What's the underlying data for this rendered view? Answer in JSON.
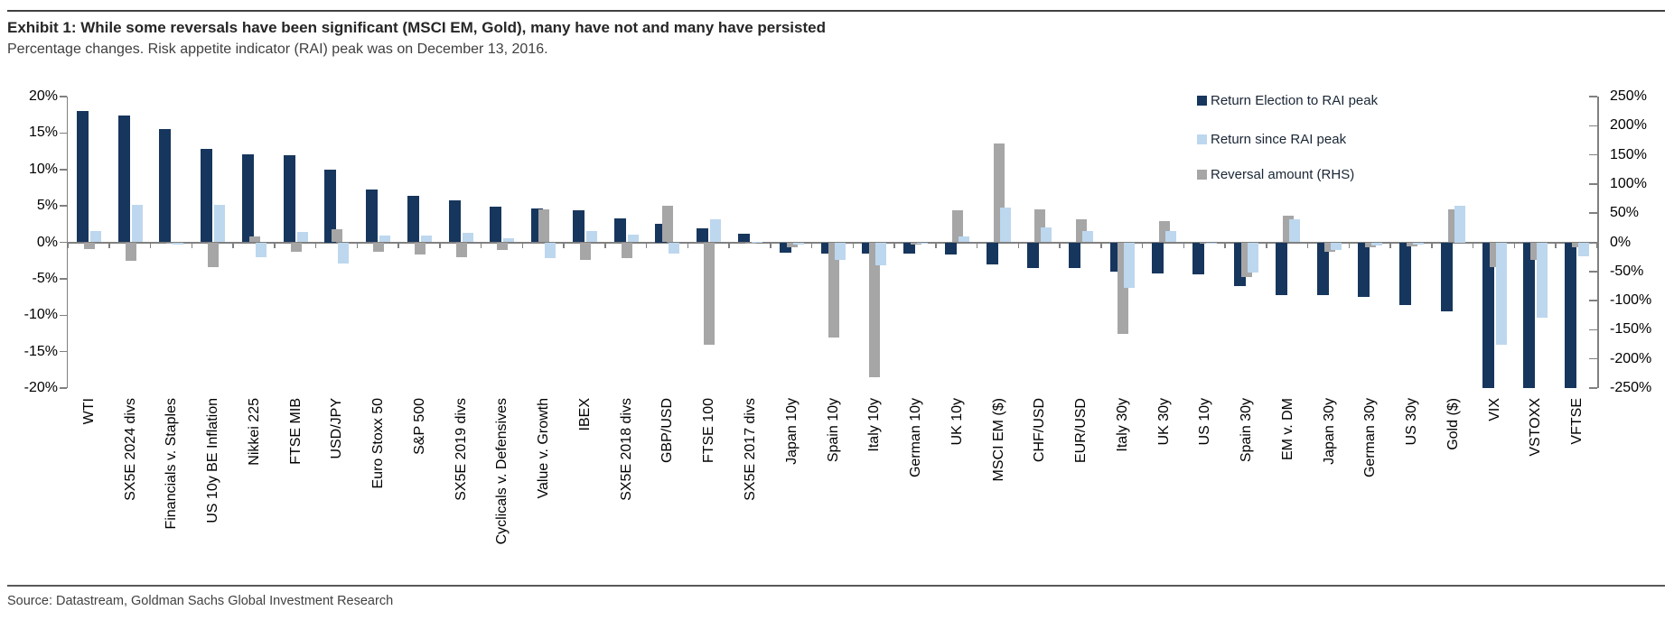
{
  "header": {
    "title": "Exhibit 1: While some reversals have been significant (MSCI EM, Gold), many have not and many have persisted",
    "subtitle": "Percentage changes. Risk appetite indicator (RAI) peak was on December 13, 2016."
  },
  "footer": {
    "source": "Source: Datastream, Goldman Sachs Global Investment Research"
  },
  "legend": [
    {
      "label": "Return Election to RAI peak",
      "color": "#17365d"
    },
    {
      "label": "Return since RAI peak",
      "color": "#bdd7ee"
    },
    {
      "label": "Reversal amount (RHS)",
      "color": "#a6a6a6"
    }
  ],
  "colors": {
    "navy": "#17365d",
    "light_blue": "#bdd7ee",
    "gray": "#a6a6a6",
    "axis": "#808080",
    "text": "#000000"
  },
  "chart_data": {
    "type": "bar",
    "title": "Exhibit 1: While some reversals have been significant (MSCI EM, Gold), many have not and many have persisted",
    "subtitle": "Percentage changes. Risk appetite indicator (RAI) peak was on December 13, 2016.",
    "grid": "off",
    "legend_position": "top-right-inside",
    "left_axis": {
      "min": -20,
      "max": 20,
      "unit": "%",
      "ticks": [
        "20%",
        "15%",
        "10%",
        "5%",
        "0%",
        "-5%",
        "-10%",
        "-15%",
        "-20%"
      ]
    },
    "right_axis": {
      "min": -250,
      "max": 250,
      "unit": "%",
      "ticks": [
        "250%",
        "200%",
        "150%",
        "100%",
        "50%",
        "0%",
        "-50%",
        "-100%",
        "-150%",
        "-200%",
        "-250%"
      ]
    },
    "categories": [
      "WTI",
      "SX5E 2024 divs",
      "Financials v. Staples",
      "US 10y BE Inflation",
      "Nikkei 225",
      "FTSE MIB",
      "USD/JPY",
      "Euro Stoxx 50",
      "S&P 500",
      "SX5E 2019 divs",
      "Cyclicals v. Defensives",
      "Value v. Growth",
      "IBEX",
      "SX5E 2018 divs",
      "GBP/USD",
      "FTSE 100",
      "SX5E 2017 divs",
      "Japan 10y",
      "Spain 10y",
      "Italy 10y",
      "German 10y",
      "UK 10y",
      "MSCI EM ($)",
      "CHF/USD",
      "EUR/USD",
      "Italy 30y",
      "UK 30y",
      "US 10y",
      "Spain 30y",
      "EM v. DM",
      "Japan 30y",
      "German 30y",
      "US 30y",
      "Gold ($)",
      "VIX",
      "VSTOXX",
      "VFTSE"
    ],
    "series": [
      {
        "name": "Return Election to RAI peak",
        "axis": "left",
        "color": "#17365d",
        "values": [
          18,
          17.4,
          15.5,
          12.8,
          12.1,
          11.9,
          10,
          7.2,
          6.4,
          5.8,
          4.9,
          4.6,
          4.4,
          3.3,
          2.5,
          1.9,
          1.2,
          -1.4,
          -1.5,
          -1.5,
          -1.6,
          -1.7,
          -3,
          -3.5,
          -3.5,
          -4,
          -4.3,
          -4.4,
          -6,
          -7.3,
          -7.3,
          -7.5,
          -8.6,
          -9.5,
          -20.4,
          -20.4,
          -20.4
        ]
      },
      {
        "name": "Return since RAI peak",
        "axis": "left",
        "color": "#bdd7ee",
        "values": [
          1.5,
          5.1,
          -0.3,
          5.1,
          -2,
          1.4,
          -2.9,
          0.9,
          0.9,
          1.3,
          0.5,
          -2.2,
          1.6,
          1,
          -1.6,
          3.1,
          0.1,
          -0.3,
          -2.4,
          -3.1,
          -0.2,
          0.8,
          4.8,
          2,
          1.5,
          -6.2,
          1.6,
          -0.2,
          -4.2,
          3.2,
          -1,
          -0.4,
          -0.3,
          5,
          -14,
          -10.4,
          -1.9
        ]
      },
      {
        "name": "Reversal amount (RHS)",
        "axis": "right",
        "color": "#a6a6a6",
        "values": [
          -11,
          -31,
          -2,
          -42,
          10,
          -16,
          22,
          -17,
          -21,
          -26,
          -13,
          57,
          -30,
          -27,
          62,
          -175,
          -2,
          -9,
          -164,
          -232,
          -4,
          55,
          170,
          57,
          40,
          -157,
          36,
          -3,
          -60,
          45,
          -17,
          -8,
          -7,
          57,
          -42,
          -30,
          -8
        ]
      }
    ]
  }
}
